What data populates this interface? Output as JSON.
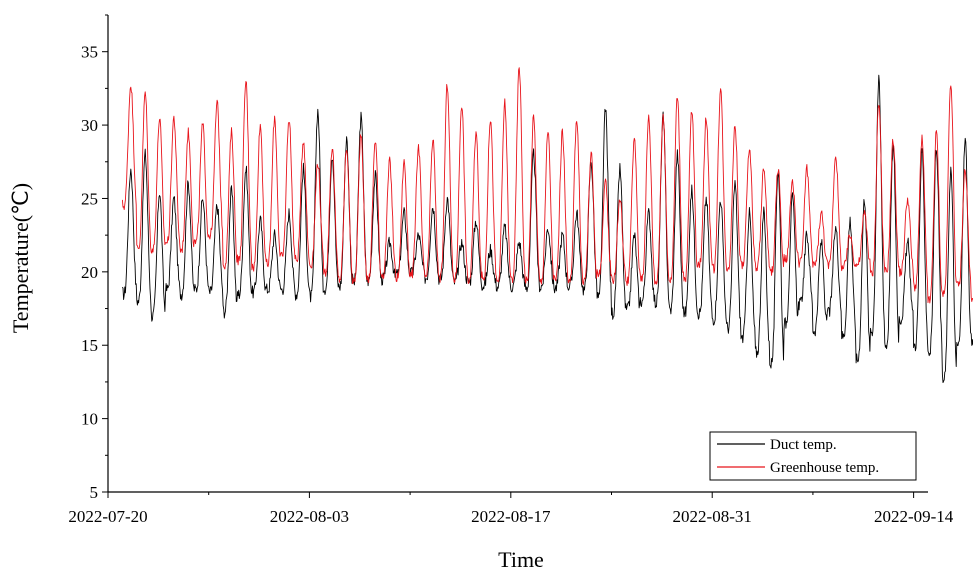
{
  "chart_data": {
    "type": "line",
    "title": "",
    "xlabel": "Time",
    "ylabel": "Temperature(℃)",
    "x_start": "2022-07-20",
    "x_end": "2022-09-15",
    "x_ticks": [
      "2022-07-20",
      "2022-08-03",
      "2022-08-17",
      "2022-08-31",
      "2022-09-14"
    ],
    "ylim": [
      5,
      37.5
    ],
    "y_ticks": [
      5,
      10,
      15,
      20,
      25,
      30,
      35
    ],
    "grid": false,
    "legend_position": "bottom-right",
    "series": [
      {
        "name": "Duct temp.",
        "color": "#000000",
        "daily_min": [
          18.5,
          18.0,
          17.0,
          18.8,
          18.5,
          18.8,
          18.6,
          17.3,
          18.5,
          18.6,
          18.8,
          18.8,
          18.5,
          18.3,
          18.9,
          19.0,
          19.3,
          19.4,
          19.5,
          19.8,
          19.9,
          19.6,
          19.5,
          19.3,
          19.3,
          19.1,
          19.0,
          19.0,
          18.9,
          19.0,
          18.9,
          19.0,
          18.8,
          18.3,
          17.2,
          17.4,
          18.0,
          17.9,
          17.4,
          17.2,
          17.2,
          16.8,
          16.2,
          15.5,
          14.5,
          13.8,
          16.5,
          17.8,
          16.0,
          17.3,
          15.6,
          14.0,
          16.0,
          15.0,
          16.8,
          15.0,
          14.5,
          12.6,
          15.0,
          15.2,
          16.0,
          16.5,
          17.3,
          17.0,
          17.6,
          16.8
        ],
        "daily_max": [
          27.0,
          28.0,
          25.5,
          25.0,
          26.0,
          25.0,
          24.5,
          25.5,
          27.0,
          23.5,
          22.5,
          24.0,
          27.0,
          31.0,
          28.0,
          29.0,
          30.5,
          26.5,
          22.0,
          24.0,
          22.5,
          24.5,
          25.0,
          22.0,
          23.5,
          21.5,
          23.0,
          22.0,
          28.0,
          23.0,
          22.5,
          24.0,
          27.5,
          31.0,
          27.0,
          22.5,
          24.0,
          30.5,
          28.0,
          25.5,
          25.0,
          25.0,
          26.0,
          24.0,
          24.0,
          27.0,
          25.0,
          22.5,
          22.0,
          23.0,
          23.5,
          25.0,
          33.0,
          28.5,
          22.0,
          28.0,
          28.5,
          27.0,
          29.0,
          25.0,
          22.5,
          28.5,
          22.5,
          24.0,
          26.0,
          27.5
        ]
      },
      {
        "name": "Greenhouse temp.",
        "color": "#e8141b",
        "daily_min": [
          24.5,
          21.5,
          21.5,
          22.0,
          21.5,
          22.0,
          22.5,
          20.5,
          20.8,
          20.3,
          20.5,
          21.0,
          20.8,
          20.5,
          20.0,
          19.5,
          19.3,
          19.5,
          19.8,
          19.6,
          19.8,
          19.7,
          19.6,
          19.5,
          19.4,
          19.5,
          19.3,
          19.5,
          19.4,
          19.3,
          19.4,
          19.3,
          19.4,
          19.8,
          19.5,
          19.4,
          19.6,
          19.3,
          19.5,
          19.5,
          20.5,
          20.2,
          20.3,
          20.5,
          20.3,
          20.0,
          20.8,
          20.6,
          20.5,
          20.4,
          20.3,
          20.5,
          19.8,
          20.0,
          20.0,
          19.0,
          18.0,
          18.5,
          19.0,
          18.0,
          18.8,
          19.5,
          18.5,
          18.2,
          18.0,
          17.8
        ],
        "daily_max": [
          32.8,
          32.2,
          30.5,
          30.5,
          29.5,
          30.0,
          31.5,
          29.5,
          33.0,
          30.0,
          30.5,
          30.5,
          29.0,
          27.5,
          28.5,
          28.5,
          29.5,
          29.0,
          27.5,
          27.5,
          28.5,
          29.0,
          32.8,
          31.5,
          29.5,
          30.5,
          31.5,
          34.0,
          30.5,
          29.5,
          29.5,
          30.5,
          28.0,
          26.0,
          25.0,
          29.0,
          30.5,
          30.5,
          32.0,
          31.0,
          30.5,
          32.5,
          30.0,
          28.5,
          27.0,
          27.0,
          26.0,
          27.0,
          24.0,
          28.0,
          22.5,
          24.0,
          31.5,
          29.0,
          25.0,
          29.0,
          29.5,
          33.0,
          27.0,
          29.0,
          25.0,
          31.5,
          24.5,
          26.5,
          24.0,
          25.5
        ]
      }
    ]
  }
}
